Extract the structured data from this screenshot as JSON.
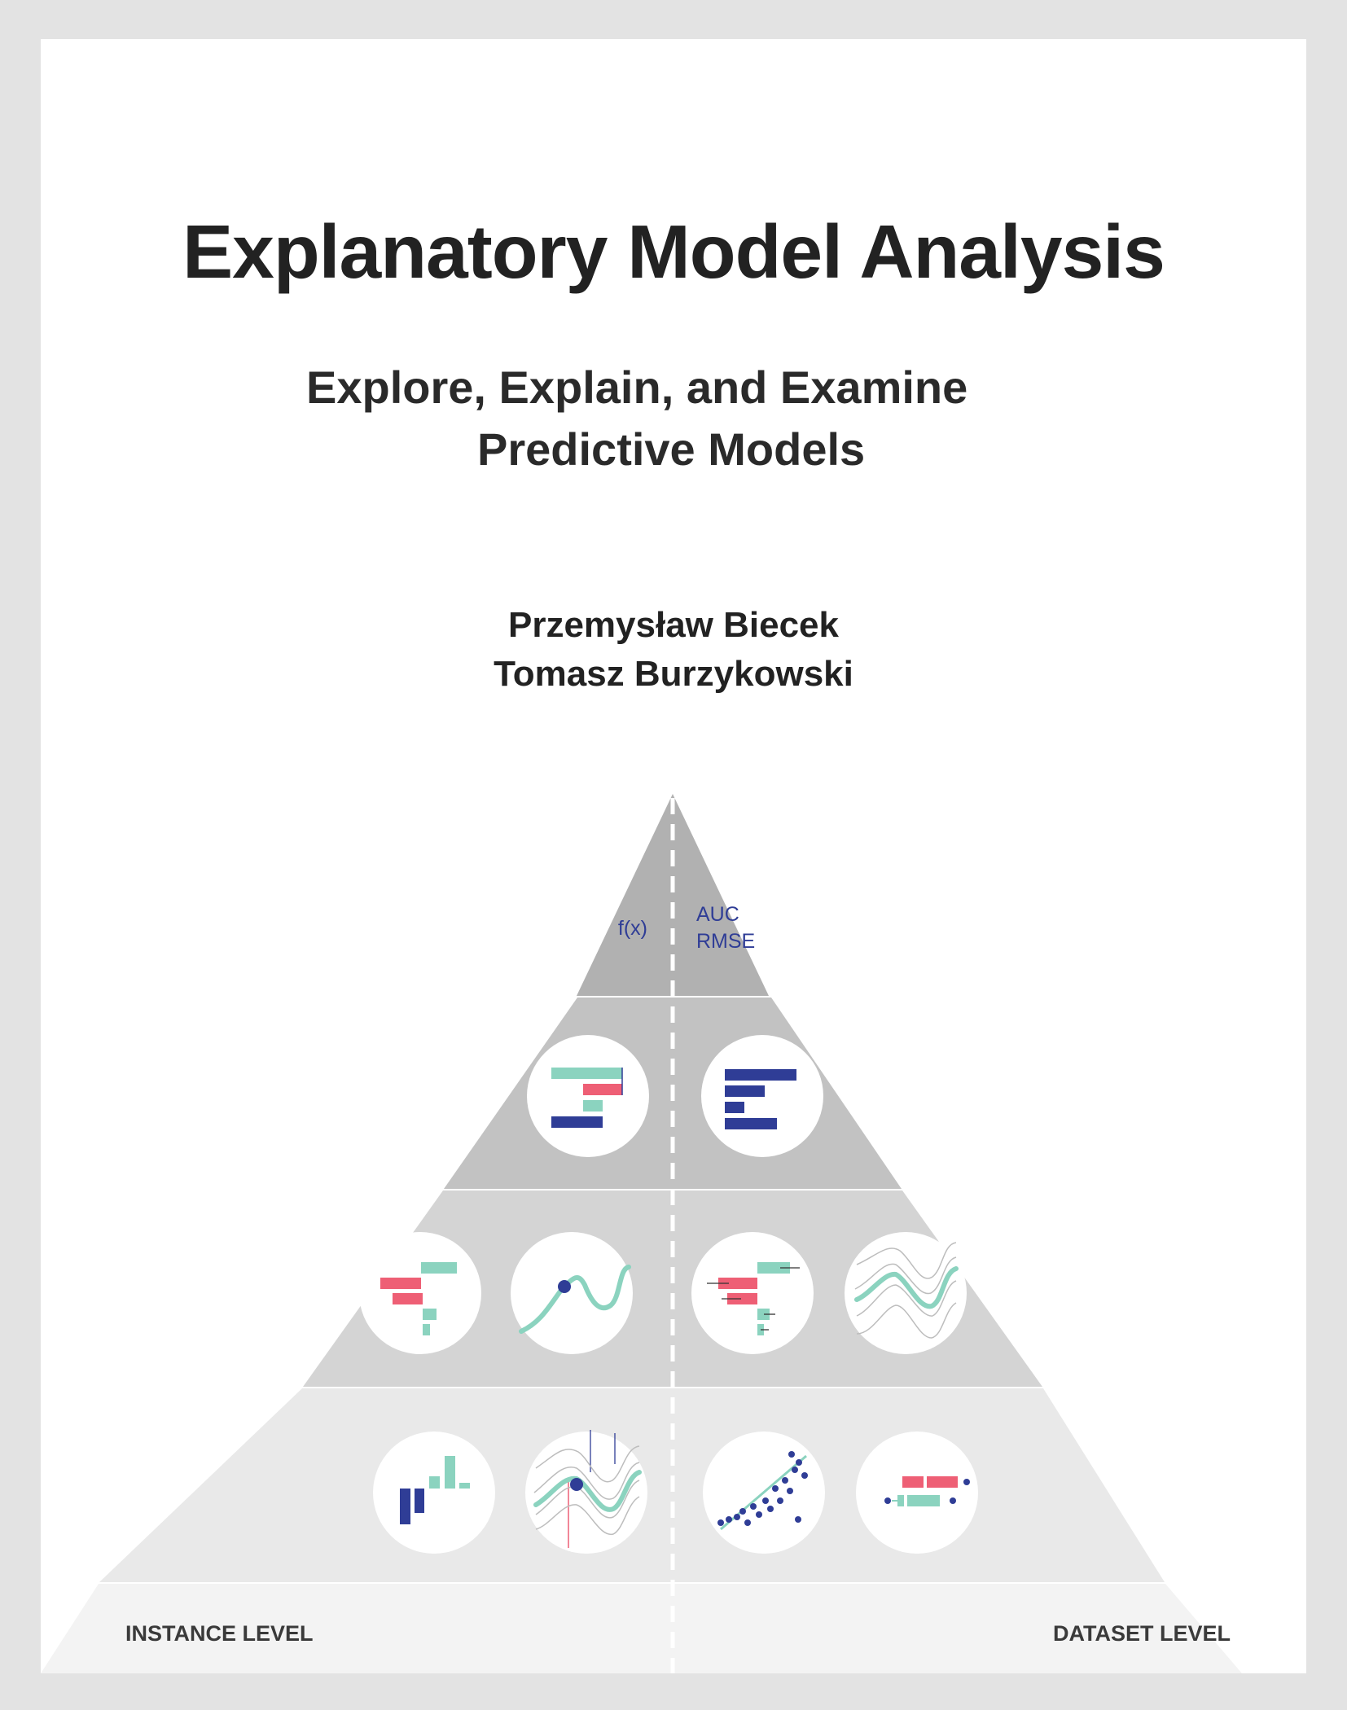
{
  "cover": {
    "title": "Explanatory Model Analysis",
    "subtitle_line1": "Explore, Explain, and Examine",
    "subtitle_line2": "Predictive Models",
    "author1": "Przemysław Biecek",
    "author2": "Tomasz Burzykowski"
  },
  "pyramid": {
    "top_left_label": "f(x)",
    "top_right_label1": "AUC",
    "top_right_label2": "RMSE",
    "instance_level_label": "INSTANCE LEVEL",
    "dataset_level_label": "DATASET LEVEL",
    "colors": {
      "navy": "#2f3d96",
      "mint": "#8bd3bf",
      "pink": "#ee5f75"
    },
    "icons": [
      "break-down-waterfall-icon",
      "variable-importance-icon",
      "break-down-instance-icon",
      "ceteris-paribus-icon",
      "break-down-interactions-icon",
      "partial-dependence-icon",
      "shapley-values-icon",
      "ceteris-paribus-oscillations-icon",
      "residual-diagnostics-icon",
      "model-performance-icon"
    ]
  }
}
